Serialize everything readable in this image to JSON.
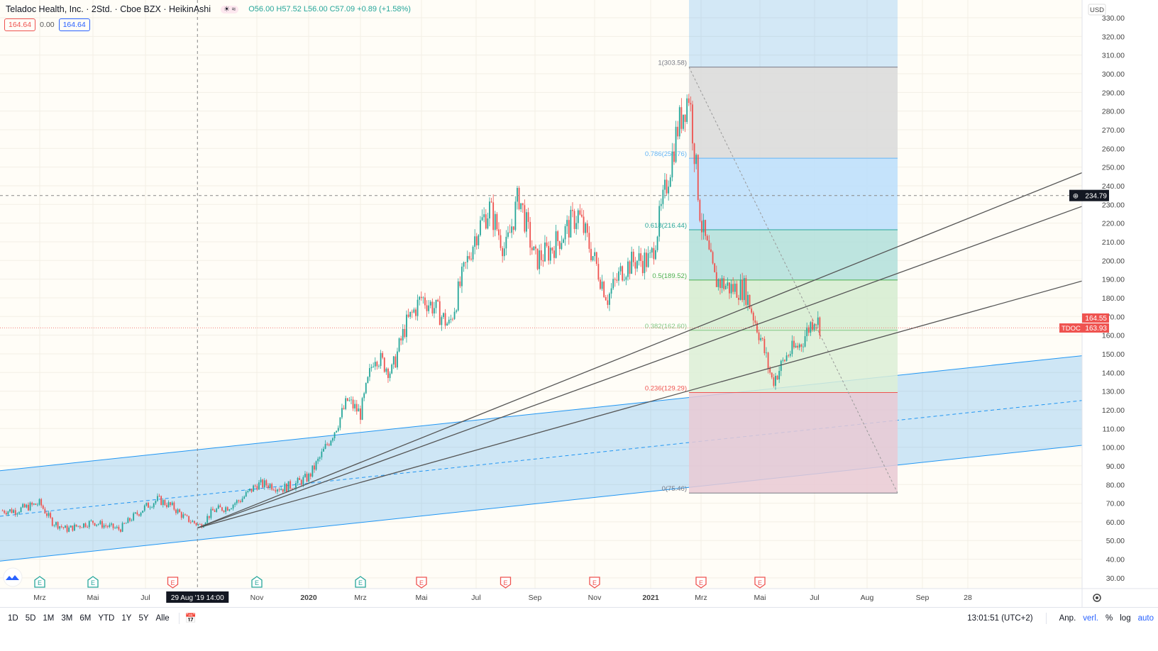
{
  "header": {
    "symbol_line": "Teladoc Health, Inc. · 2Std. · Cboe BZX · HeikinAshi",
    "ohlc": "O56.00 H57.52 L56.00 C57.09 +0.89 (+1.58%)",
    "bid": "164.64",
    "spread": "0.00",
    "ask": "164.64",
    "icons": [
      "sun-icon",
      "wave-icon"
    ]
  },
  "price_axis": {
    "currency": "USD",
    "ticks": [
      "330.00",
      "320.00",
      "310.00",
      "300.00",
      "290.00",
      "280.00",
      "270.00",
      "260.00",
      "250.00",
      "240.00",
      "230.00",
      "220.00",
      "210.00",
      "200.00",
      "190.00",
      "180.00",
      "170.00",
      "160.00",
      "150.00",
      "140.00",
      "130.00",
      "120.00",
      "110.00",
      "100.00",
      "90.00",
      "80.00",
      "70.00",
      "60.00",
      "50.00",
      "40.00",
      "30.00"
    ],
    "crosshair_price": "234.79",
    "high_label": "164.55",
    "last_symbol": "TDOC",
    "last_price": "163.93"
  },
  "time_axis": {
    "ticks": [
      {
        "label": "Mrz",
        "date": "2019-03-01"
      },
      {
        "label": "Mai",
        "date": "2019-05-01"
      },
      {
        "label": "Jul",
        "date": "2019-07-01"
      },
      {
        "label": "Nov",
        "date": "2019-11-01"
      },
      {
        "label": "2020",
        "date": "2020-01-01",
        "bold": true
      },
      {
        "label": "Mrz",
        "date": "2020-03-01"
      },
      {
        "label": "Mai",
        "date": "2020-05-01"
      },
      {
        "label": "Jul",
        "date": "2020-07-01"
      },
      {
        "label": "Sep",
        "date": "2020-09-01"
      },
      {
        "label": "Nov",
        "date": "2020-11-01"
      },
      {
        "label": "2021",
        "date": "2021-01-01",
        "bold": true
      },
      {
        "label": "Mrz",
        "date": "2021-03-01"
      },
      {
        "label": "Mai",
        "date": "2021-05-01"
      },
      {
        "label": "Jul",
        "date": "2021-07-01"
      },
      {
        "label": "Aug",
        "date": "2021-08-01"
      },
      {
        "label": "Sep",
        "date": "2021-09-01"
      },
      {
        "label": "28",
        "date": "2021-09-28"
      }
    ],
    "crosshair_time": "29 Aug '19   14:00"
  },
  "earnings": [
    {
      "date": "2019-03-01",
      "label": "E",
      "color": "#26a69a"
    },
    {
      "date": "2019-05-01",
      "label": "E",
      "color": "#26a69a"
    },
    {
      "date": "2019-08-01",
      "label": "E",
      "color": "#ef5350"
    },
    {
      "date": "2019-11-01",
      "label": "E",
      "color": "#26a69a"
    },
    {
      "date": "2020-03-01",
      "label": "E",
      "color": "#26a69a"
    },
    {
      "date": "2020-05-01",
      "label": "E",
      "color": "#ef5350"
    },
    {
      "date": "2020-08-01",
      "label": "E",
      "color": "#ef5350"
    },
    {
      "date": "2020-11-01",
      "label": "E",
      "color": "#ef5350"
    },
    {
      "date": "2021-03-01",
      "label": "E",
      "color": "#ef5350"
    },
    {
      "date": "2021-05-01",
      "label": "E",
      "color": "#ef5350"
    }
  ],
  "chart_data": {
    "type": "candlestick",
    "ylim": [
      25,
      335
    ],
    "grid": true,
    "series": [
      {
        "values": [
          [
            "2019-02-01",
            66
          ],
          [
            "2019-02-15",
            68
          ],
          [
            "2019-03-01",
            70
          ],
          [
            "2019-03-15",
            60
          ],
          [
            "2019-04-01",
            56
          ],
          [
            "2019-04-15",
            58
          ],
          [
            "2019-05-01",
            60
          ],
          [
            "2019-05-15",
            58
          ],
          [
            "2019-06-01",
            56
          ],
          [
            "2019-06-15",
            62
          ],
          [
            "2019-07-01",
            68
          ],
          [
            "2019-07-15",
            72
          ],
          [
            "2019-08-01",
            68
          ],
          [
            "2019-08-15",
            62
          ],
          [
            "2019-09-01",
            58
          ],
          [
            "2019-09-15",
            66
          ],
          [
            "2019-10-01",
            68
          ],
          [
            "2019-10-15",
            72
          ],
          [
            "2019-11-01",
            80
          ],
          [
            "2019-11-15",
            80
          ],
          [
            "2019-12-01",
            78
          ],
          [
            "2019-12-15",
            80
          ],
          [
            "2020-01-01",
            84
          ],
          [
            "2020-01-15",
            95
          ],
          [
            "2020-02-01",
            110
          ],
          [
            "2020-02-15",
            125
          ],
          [
            "2020-03-01",
            118
          ],
          [
            "2020-03-15",
            150
          ],
          [
            "2020-04-01",
            140
          ],
          [
            "2020-04-15",
            165
          ],
          [
            "2020-05-01",
            180
          ],
          [
            "2020-05-15",
            175
          ],
          [
            "2020-06-01",
            165
          ],
          [
            "2020-06-15",
            190
          ],
          [
            "2020-07-01",
            215
          ],
          [
            "2020-07-15",
            228
          ],
          [
            "2020-08-01",
            205
          ],
          [
            "2020-08-15",
            235
          ],
          [
            "2020-09-01",
            200
          ],
          [
            "2020-09-15",
            205
          ],
          [
            "2020-10-01",
            215
          ],
          [
            "2020-10-15",
            225
          ],
          [
            "2020-11-01",
            200
          ],
          [
            "2020-11-15",
            180
          ],
          [
            "2020-12-01",
            195
          ],
          [
            "2020-12-15",
            200
          ],
          [
            "2021-01-01",
            200
          ],
          [
            "2021-01-15",
            230
          ],
          [
            "2021-02-01",
            270
          ],
          [
            "2021-02-15",
            290
          ],
          [
            "2021-03-01",
            220
          ],
          [
            "2021-03-15",
            190
          ],
          [
            "2021-04-01",
            185
          ],
          [
            "2021-04-15",
            185
          ],
          [
            "2021-05-01",
            160
          ],
          [
            "2021-05-15",
            135
          ],
          [
            "2021-06-01",
            150
          ],
          [
            "2021-06-15",
            155
          ],
          [
            "2021-07-01",
            170
          ],
          [
            "2021-07-05",
            164
          ]
        ]
      }
    ],
    "colors": {
      "up": "#26a69a",
      "down": "#ef5350"
    },
    "fibonacci": {
      "start_date": "2021-02-12",
      "end_date": "2021-08-20",
      "levels": [
        {
          "label": "1(303.58)",
          "price": 303.58,
          "color": "#787b86",
          "fill": "#d9d9d9"
        },
        {
          "label": "0.786(254.76)",
          "price": 254.76,
          "color": "#64b5f6",
          "fill": "#bbdefb"
        },
        {
          "label": "0.618(216.44)",
          "price": 216.44,
          "color": "#26a69a",
          "fill": "#b2dfdb"
        },
        {
          "label": "0.5(189.52)",
          "price": 189.52,
          "color": "#4caf50",
          "fill": "#d5ecd0"
        },
        {
          "label": "0.382(162.60)",
          "price": 162.6,
          "color": "#81c784",
          "fill": "#dcefd6"
        },
        {
          "label": "0.236(129.29)",
          "price": 129.29,
          "color": "#ef5350",
          "fill": "#e9c9d3"
        },
        {
          "label": "0(75.46)",
          "price": 75.46,
          "color": "#787b86",
          "fill": "#f8cccc"
        }
      ]
    },
    "channel": {
      "start": [
        "2019-01-15",
        87.4
      ],
      "end": [
        "2021-10-20",
        149
      ],
      "mid": [
        63,
        125
      ],
      "lower": [
        39,
        101
      ],
      "color": "#2196f3"
    },
    "trendlines": [
      {
        "from": [
          "2019-08-29",
          56
        ],
        "to": [
          "2021-10-20",
          247
        ]
      },
      {
        "from": [
          "2019-08-29",
          56
        ],
        "to": [
          "2021-10-20",
          229
        ]
      },
      {
        "from": [
          "2019-08-29",
          56
        ],
        "to": [
          "2021-10-20",
          189
        ]
      }
    ]
  },
  "toolbar": {
    "ranges": [
      "1D",
      "5D",
      "1M",
      "3M",
      "6M",
      "YTD",
      "1Y",
      "5Y",
      "Alle"
    ],
    "clock": "13:01:51 (UTC+2)",
    "adjust": "Anp.",
    "extended": "verl.",
    "percent": "%",
    "log": "log",
    "auto": "auto"
  }
}
